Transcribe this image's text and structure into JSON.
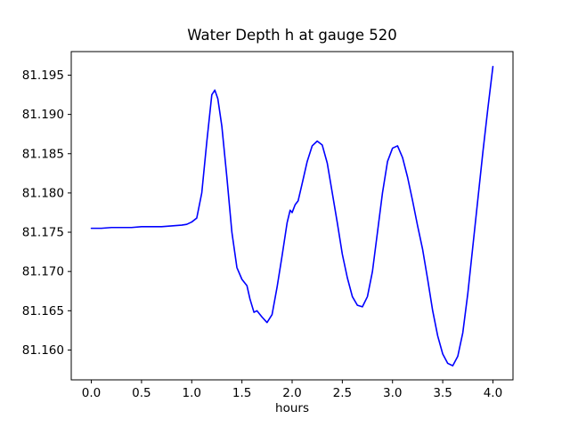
{
  "figure": {
    "background": "#ffffff",
    "frame_color": "#000000"
  },
  "chart_data": {
    "type": "line",
    "title": "Water Depth h at gauge 520",
    "xlabel": "hours",
    "ylabel": "",
    "legend": null,
    "grid": false,
    "line_color": "#0000ff",
    "xlim": [
      -0.2,
      4.2
    ],
    "ylim": [
      81.1562,
      81.198
    ],
    "xticks": [
      0.0,
      0.5,
      1.0,
      1.5,
      2.0,
      2.5,
      3.0,
      3.5,
      4.0
    ],
    "xtick_labels": [
      "0.0",
      "0.5",
      "1.0",
      "1.5",
      "2.0",
      "2.5",
      "3.0",
      "3.5",
      "4.0"
    ],
    "yticks": [
      81.16,
      81.165,
      81.17,
      81.175,
      81.18,
      81.185,
      81.19,
      81.195
    ],
    "ytick_labels": [
      "81.160",
      "81.165",
      "81.170",
      "81.175",
      "81.180",
      "81.185",
      "81.190",
      "81.195"
    ],
    "series_name": "Water Depth h",
    "x": [
      0.0,
      0.1,
      0.2,
      0.3,
      0.4,
      0.5,
      0.6,
      0.7,
      0.8,
      0.9,
      0.95,
      1.0,
      1.05,
      1.1,
      1.15,
      1.2,
      1.23,
      1.26,
      1.3,
      1.35,
      1.4,
      1.45,
      1.5,
      1.55,
      1.58,
      1.62,
      1.65,
      1.7,
      1.75,
      1.8,
      1.85,
      1.9,
      1.95,
      1.98,
      2.0,
      2.03,
      2.06,
      2.1,
      2.15,
      2.2,
      2.25,
      2.3,
      2.35,
      2.4,
      2.45,
      2.5,
      2.55,
      2.6,
      2.65,
      2.7,
      2.75,
      2.8,
      2.85,
      2.9,
      2.95,
      3.0,
      3.05,
      3.1,
      3.15,
      3.2,
      3.25,
      3.3,
      3.35,
      3.4,
      3.45,
      3.5,
      3.55,
      3.6,
      3.65,
      3.7,
      3.75,
      3.8,
      3.85,
      3.9,
      3.95,
      4.0
    ],
    "y": [
      81.1755,
      81.1755,
      81.1756,
      81.1756,
      81.1756,
      81.1757,
      81.1757,
      81.1757,
      81.1758,
      81.1759,
      81.176,
      81.1763,
      81.1768,
      81.18,
      81.1865,
      81.1925,
      81.1931,
      81.192,
      81.1885,
      81.182,
      81.175,
      81.1705,
      81.169,
      81.1682,
      81.1665,
      81.1648,
      81.165,
      81.1642,
      81.1635,
      81.1645,
      81.168,
      81.172,
      81.1762,
      81.1778,
      81.1775,
      81.1785,
      81.179,
      81.1812,
      81.184,
      81.186,
      81.1866,
      81.1861,
      81.1838,
      81.18,
      81.1762,
      81.1722,
      81.1692,
      81.1668,
      81.1657,
      81.1655,
      81.1668,
      81.17,
      81.175,
      81.18,
      81.184,
      81.1857,
      81.186,
      81.1845,
      81.182,
      81.179,
      81.1758,
      81.1728,
      81.169,
      81.165,
      81.1618,
      81.1595,
      81.1583,
      81.158,
      81.1592,
      81.1622,
      81.1672,
      81.1732,
      81.1792,
      81.1852,
      81.1908,
      81.1961
    ]
  }
}
